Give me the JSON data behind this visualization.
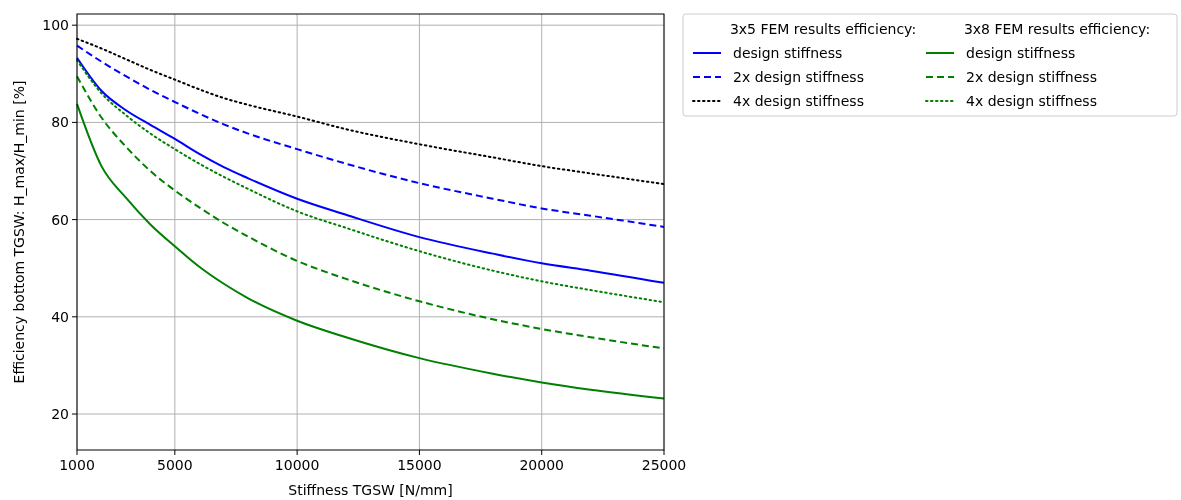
{
  "chart_data": {
    "type": "line",
    "xlabel": "Stiffness TGSW [N/mm]",
    "ylabel": "Efficiency bottom TGSW: H_max/H_min [%]",
    "x": [
      1000,
      2000,
      3000,
      4000,
      5000,
      6000,
      7000,
      8000,
      10000,
      12000,
      15000,
      18000,
      20000,
      22000,
      25000
    ],
    "xlim": [
      1000,
      25000
    ],
    "xticks": [
      1000,
      5000,
      10000,
      15000,
      20000,
      25000
    ],
    "ylim": [
      12.6,
      102.3
    ],
    "yticks": [
      20,
      40,
      60,
      80,
      100
    ],
    "grid": true,
    "legend": "right",
    "annotations": [
      "3x5 FEM results efficiency:",
      "3x8 FEM results efficiency:"
    ],
    "series": [
      {
        "name": "design stiffness",
        "color": "#0000ff",
        "line_style": "solid",
        "values": [
          93.3,
          86.5,
          82.5,
          79.5,
          76.6,
          73.5,
          70.8,
          68.5,
          64.3,
          61,
          56.4,
          53,
          51,
          49.5,
          47
        ]
      },
      {
        "name": "2x design stiffness",
        "color": "#0000ff",
        "line_style": "dashed",
        "values": [
          95.8,
          92.5,
          89.5,
          86.7,
          84.2,
          81.8,
          79.6,
          77.7,
          74.5,
          71.5,
          67.5,
          64.3,
          62.3,
          60.8,
          58.5
        ]
      },
      {
        "name": "4x design stiffness",
        "color": "#000000",
        "line_style": "dotted",
        "values": [
          97.2,
          95.2,
          93,
          90.8,
          88.8,
          86.8,
          85,
          83.6,
          81.2,
          78.6,
          75.5,
          72.8,
          71,
          69.5,
          67.3
        ]
      },
      {
        "name": "design stiffness",
        "color": "#008000",
        "line_style": "solid",
        "values": [
          83.8,
          71,
          64.5,
          59,
          54.5,
          50.3,
          46.8,
          43.8,
          39.2,
          35.8,
          31.5,
          28.3,
          26.5,
          25,
          23.2
        ]
      },
      {
        "name": "2x design stiffness",
        "color": "#008000",
        "line_style": "dashed",
        "values": [
          89.5,
          81,
          75,
          70,
          66,
          62.5,
          59.3,
          56.5,
          51.5,
          47.8,
          43.2,
          39.5,
          37.5,
          35.8,
          33.5
        ]
      },
      {
        "name": "4x design stiffness",
        "color": "#008000",
        "line_style": "dotted",
        "values": [
          92.8,
          86,
          81.5,
          77.7,
          74.5,
          71.5,
          68.8,
          66.3,
          61.7,
          58.3,
          53.5,
          49.5,
          47.3,
          45.5,
          43
        ]
      }
    ]
  }
}
